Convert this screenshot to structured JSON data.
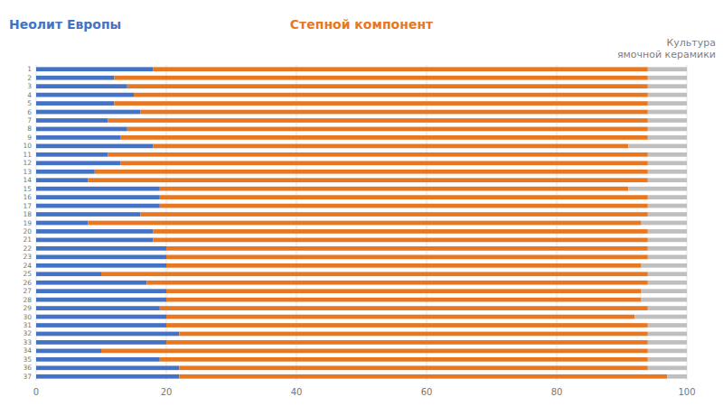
{
  "chart_data": {
    "type": "bar",
    "orientation": "horizontal",
    "stacked": true,
    "grid": true,
    "annotations": [
      "Неолит Европы",
      "Степной компонент",
      "Культура\nямочной керамики"
    ],
    "categories": [
      "37",
      "36",
      "35",
      "34",
      "33",
      "32",
      "31",
      "30",
      "29",
      "28",
      "27",
      "26",
      "25",
      "24",
      "23",
      "22",
      "21",
      "20",
      "19",
      "18",
      "17",
      "16",
      "15",
      "14",
      "13",
      "12",
      "11",
      "10",
      "9",
      "8",
      "7",
      "6",
      "5",
      "4",
      "3",
      "2",
      "1"
    ],
    "series": [
      {
        "color": "#4472C4",
        "values": [
          22,
          22,
          19,
          10,
          20,
          22,
          20,
          20,
          19,
          20,
          20,
          17,
          10,
          20,
          20,
          20,
          18,
          18,
          8,
          16,
          19,
          19,
          19,
          8,
          9,
          13,
          11,
          18,
          13,
          14,
          11,
          16,
          12,
          15,
          14,
          12,
          18
        ]
      },
      {
        "color": "#E87722",
        "values": [
          75,
          72,
          75,
          84,
          74,
          72,
          74,
          72,
          75,
          73,
          73,
          77,
          84,
          73,
          74,
          74,
          76,
          76,
          85,
          78,
          75,
          75,
          72,
          86,
          85,
          81,
          83,
          73,
          81,
          80,
          83,
          78,
          82,
          79,
          80,
          82,
          76
        ]
      },
      {
        "color": "#BFBFBF",
        "values": [
          3,
          6,
          6,
          6,
          6,
          6,
          6,
          8,
          6,
          7,
          7,
          6,
          6,
          7,
          6,
          6,
          6,
          6,
          7,
          6,
          6,
          6,
          9,
          6,
          6,
          6,
          6,
          9,
          6,
          6,
          6,
          6,
          6,
          6,
          6,
          6,
          6
        ]
      }
    ],
    "xlim": [
      0,
      100
    ],
    "xticks": [
      0,
      20,
      40,
      60,
      80,
      100
    ]
  }
}
